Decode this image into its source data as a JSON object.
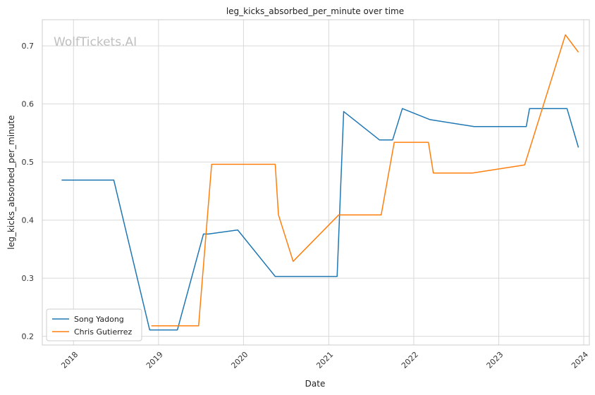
{
  "chart_data": {
    "type": "line",
    "title": "leg_kicks_absorbed_per_minute over time",
    "xlabel": "Date",
    "ylabel": "leg_kicks_absorbed_per_minute",
    "watermark": "WolfTickets.AI",
    "xlim": [
      "2017-08-20",
      "2024-01-25"
    ],
    "ylim": [
      0.185,
      0.745
    ],
    "x_ticks": [
      "2018",
      "2019",
      "2020",
      "2021",
      "2022",
      "2023",
      "2024"
    ],
    "y_ticks": [
      "0.2",
      "0.3",
      "0.4",
      "0.5",
      "0.6",
      "0.7"
    ],
    "grid": true,
    "legend_position": "lower-left",
    "series": [
      {
        "name": "Song Yadong",
        "color": "#1f77b4",
        "points": [
          [
            "2017-11-11",
            0.469
          ],
          [
            "2018-06-23",
            0.469
          ],
          [
            "2018-11-24",
            0.211
          ],
          [
            "2019-03-23",
            0.211
          ],
          [
            "2019-07-13",
            0.376
          ],
          [
            "2019-08-03",
            0.376
          ],
          [
            "2019-12-07",
            0.383
          ],
          [
            "2020-05-16",
            0.303
          ],
          [
            "2021-02-06",
            0.303
          ],
          [
            "2021-03-06",
            0.587
          ],
          [
            "2021-08-07",
            0.538
          ],
          [
            "2021-10-02",
            0.538
          ],
          [
            "2021-11-13",
            0.592
          ],
          [
            "2022-03-12",
            0.573
          ],
          [
            "2022-09-17",
            0.561
          ],
          [
            "2023-04-29",
            0.561
          ],
          [
            "2023-05-13",
            0.592
          ],
          [
            "2023-10-21",
            0.592
          ],
          [
            "2023-12-09",
            0.525
          ]
        ]
      },
      {
        "name": "Chris Gutierrez",
        "color": "#ff7f0e",
        "points": [
          [
            "2018-12-01",
            0.218
          ],
          [
            "2019-06-22",
            0.218
          ],
          [
            "2019-08-17",
            0.496
          ],
          [
            "2020-05-16",
            0.496
          ],
          [
            "2020-05-30",
            0.409
          ],
          [
            "2020-08-01",
            0.329
          ],
          [
            "2021-02-13",
            0.409
          ],
          [
            "2021-08-14",
            0.409
          ],
          [
            "2021-10-09",
            0.534
          ],
          [
            "2022-03-05",
            0.534
          ],
          [
            "2022-03-26",
            0.481
          ],
          [
            "2022-09-10",
            0.481
          ],
          [
            "2023-04-22",
            0.495
          ],
          [
            "2023-10-14",
            0.719
          ],
          [
            "2023-12-09",
            0.689
          ]
        ]
      }
    ]
  }
}
